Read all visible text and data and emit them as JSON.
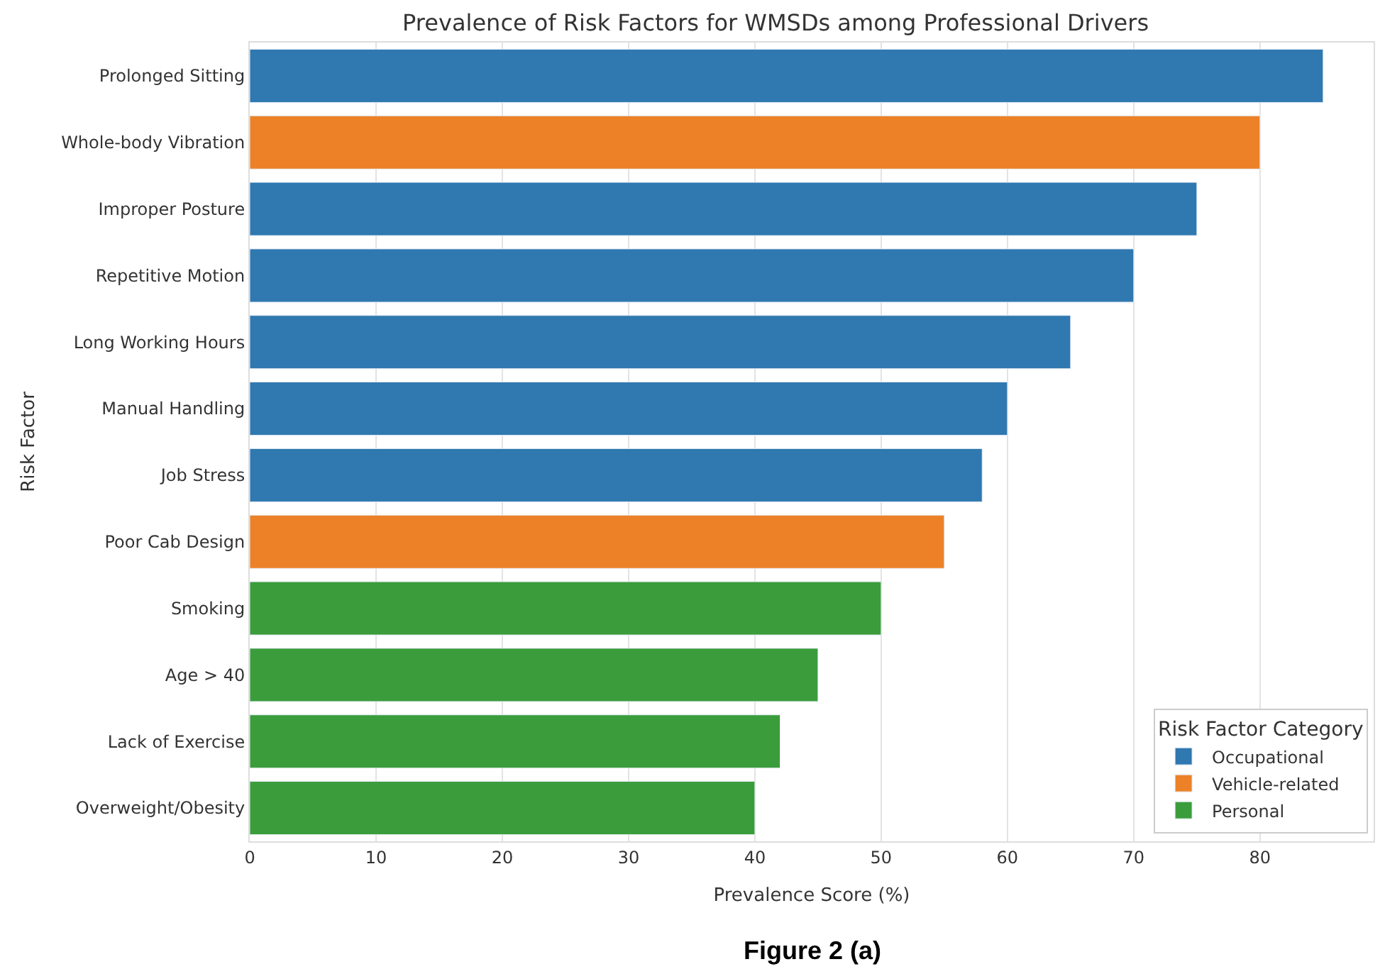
{
  "chart_data": {
    "type": "bar",
    "orientation": "horizontal",
    "title": "Prevalence of Risk Factors for WMSDs among Professional Drivers",
    "xlabel": "Prevalence Score (%)",
    "ylabel": "Risk Factor",
    "legend_title": "Risk Factor Category",
    "categories": [
      "Prolonged Sitting",
      "Whole-body Vibration",
      "Improper Posture",
      "Repetitive Motion",
      "Long Working Hours",
      "Manual Handling",
      "Job Stress",
      "Poor Cab Design",
      "Smoking",
      "Age > 40",
      "Lack of Exercise",
      "Overweight/Obesity"
    ],
    "series": [
      {
        "name": "Occupational",
        "color": "#2f78b0",
        "values": [
          85,
          null,
          75,
          70,
          65,
          60,
          58,
          null,
          null,
          null,
          null,
          null
        ]
      },
      {
        "name": "Vehicle-related",
        "color": "#ec8127",
        "values": [
          null,
          80,
          null,
          null,
          null,
          null,
          null,
          55,
          null,
          null,
          null,
          null
        ]
      },
      {
        "name": "Personal",
        "color": "#3b9c3b",
        "values": [
          null,
          null,
          null,
          null,
          null,
          null,
          null,
          null,
          50,
          45,
          42,
          40
        ]
      }
    ],
    "xlim": [
      0,
      89
    ],
    "xticks": [
      0,
      10,
      20,
      30,
      40,
      50,
      60,
      70,
      80
    ],
    "grid": "x",
    "legend": "bottom right",
    "annotations": [
      "Figure 2 (a)"
    ]
  }
}
